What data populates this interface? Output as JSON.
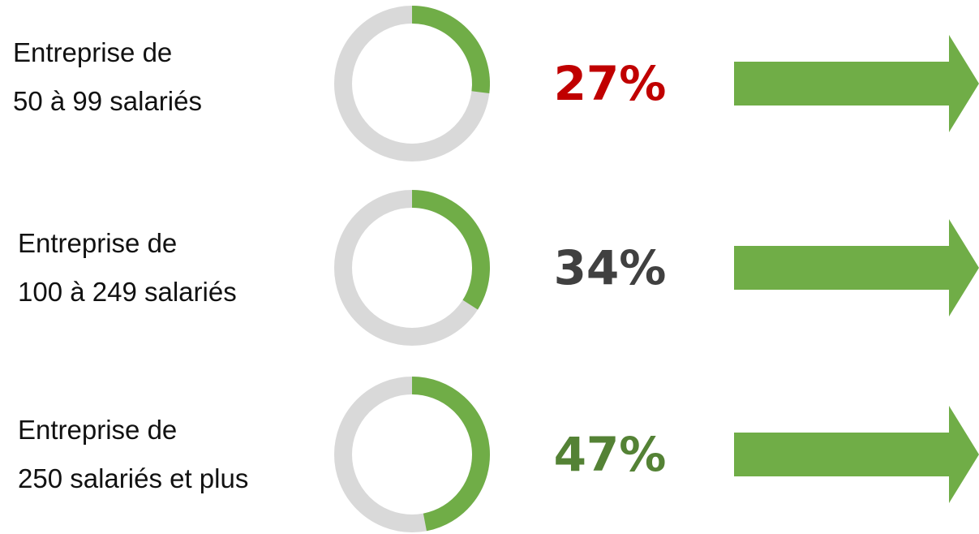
{
  "chart_data": {
    "type": "donut",
    "categories": [
      "Entreprise de\n50 à 99 salariés",
      "Entreprise de\n100 à 249 salariés",
      "Entreprise de\n250 salariés et plus"
    ],
    "values": [
      27,
      34,
      47
    ],
    "value_labels": [
      "27%",
      "34%",
      "47%"
    ],
    "color": "#70ad47",
    "track_color": "#d9d9d9",
    "label_colors": [
      "#c00000",
      "#404040",
      "#548235"
    ]
  }
}
